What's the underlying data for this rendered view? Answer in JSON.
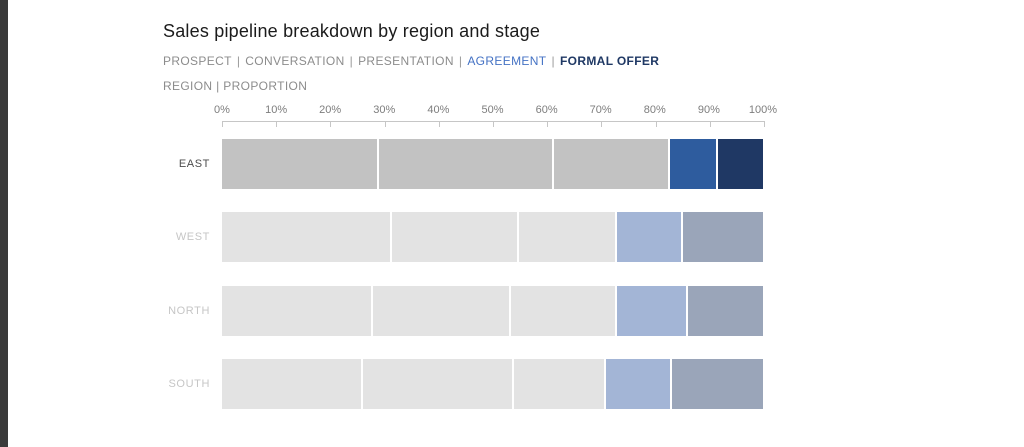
{
  "page": {
    "background_color": "#ffffff",
    "left_strip_color": "#3a3a3a"
  },
  "chart": {
    "title": "Sales pipeline breakdown by region and stage",
    "caption": "REGION | PROPORTION"
  },
  "legend": {
    "separator": "|",
    "items": [
      {
        "label": "PROSPECT",
        "color": "#8c8c8c",
        "weight": "normal"
      },
      {
        "label": "CONVERSATION",
        "color": "#8c8c8c",
        "weight": "normal"
      },
      {
        "label": "PRESENTATION",
        "color": "#8c8c8c",
        "weight": "normal"
      },
      {
        "label": "AGREEMENT",
        "color": "#4472c4",
        "weight": "normal"
      },
      {
        "label": "FORMAL OFFER",
        "color": "#1f3864",
        "weight": "bold"
      }
    ]
  },
  "axis": {
    "ticks": [
      "0%",
      "10%",
      "20%",
      "30%",
      "40%",
      "50%",
      "60%",
      "70%",
      "80%",
      "90%",
      "100%"
    ],
    "min": 0,
    "max": 100
  },
  "chart_data": {
    "type": "bar",
    "orientation": "horizontal",
    "stacked": true,
    "title": "Sales pipeline breakdown by region and stage",
    "categories": [
      "EAST",
      "WEST",
      "NORTH",
      "SOUTH"
    ],
    "series": [
      {
        "name": "PROSPECT",
        "values": [
          29,
          31.5,
          28,
          26
        ]
      },
      {
        "name": "CONVERSATION",
        "values": [
          32.5,
          23.5,
          25.5,
          28
        ]
      },
      {
        "name": "PRESENTATION",
        "values": [
          21.5,
          18,
          19.5,
          17
        ]
      },
      {
        "name": "AGREEMENT",
        "values": [
          8.5,
          12,
          13,
          12
        ]
      },
      {
        "name": "FORMAL OFFER",
        "values": [
          8.5,
          15,
          14,
          17
        ]
      }
    ],
    "xlim": [
      0,
      100
    ],
    "x_tick_step": 10,
    "x_format": "percent",
    "grid": false,
    "legend_position": "top",
    "highlighted_category": "EAST"
  },
  "palette": {
    "stage_roles": [
      "neutral",
      "neutral",
      "neutral",
      "agreement",
      "formal_offer"
    ],
    "highlight": {
      "neutral": "#c2c2c2",
      "agreement": "#2e5c9e",
      "formal_offer": "#1f3864",
      "label_color": "#4d4d4d"
    },
    "muted": {
      "neutral": "#e3e3e3",
      "agreement": "#a3b5d6",
      "formal_offer": "#9aa5b9",
      "label_color": "#c6c6c6"
    }
  }
}
